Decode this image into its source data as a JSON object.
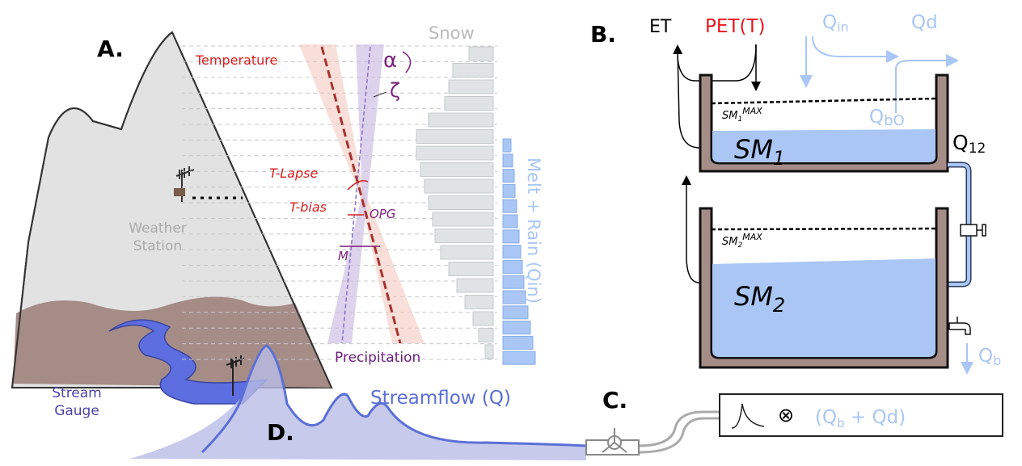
{
  "panels": {
    "a": "A.",
    "b": "B.",
    "c": "C.",
    "d": "D."
  },
  "panel_a": {
    "snow": "Snow",
    "temperature": "Temperature",
    "alpha": "α",
    "zeta": "ζ",
    "t_lapse": "T-Lapse",
    "t_bias": "T-bias",
    "opg": "OPG",
    "m": "M",
    "precipitation": "Precipitation",
    "weather_station": [
      "Weather",
      "Station"
    ],
    "stream_gauge": [
      "Stream",
      "Gauge"
    ],
    "melt_rain": "Melt + Rain (Qin)"
  },
  "panel_b": {
    "et": "ET",
    "pet": "PET(T)",
    "qin": {
      "base": "Q",
      "sub": "in"
    },
    "qd": "Qd",
    "qbo": {
      "base": "Q",
      "sub": "bO"
    },
    "q12": {
      "base": "Q",
      "sub": "12"
    },
    "sm1_max": {
      "base": "SM",
      "sub": "1",
      "sup": "MAX"
    },
    "sm1": {
      "base": "SM",
      "sub": "1"
    },
    "sm2_max": {
      "base": "SM",
      "sub": "2",
      "sup": "MAX"
    },
    "sm2": {
      "base": "SM",
      "sub": "2"
    },
    "qb": {
      "base": "Q",
      "sub": "b"
    }
  },
  "panel_c": {
    "operator": "⊗",
    "formula": [
      "(Q",
      "b",
      " + Qd)"
    ]
  },
  "panel_d": {
    "streamflow": "Streamflow (Q)"
  }
}
